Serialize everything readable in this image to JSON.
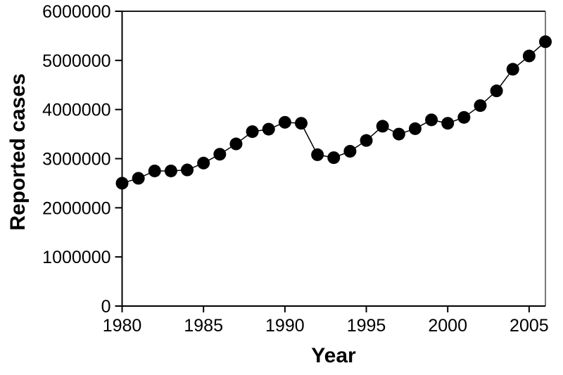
{
  "page": {
    "background": "#ffffff"
  },
  "chart_data": {
    "type": "line",
    "title": "",
    "xlabel": "Year",
    "ylabel": "Reported cases",
    "x": [
      1980,
      1981,
      1982,
      1983,
      1984,
      1985,
      1986,
      1987,
      1988,
      1989,
      1990,
      1991,
      1992,
      1993,
      1994,
      1995,
      1996,
      1997,
      1998,
      1999,
      2000,
      2001,
      2002,
      2003,
      2004,
      2005,
      2006
    ],
    "series": [
      {
        "name": "Reported cases",
        "values": [
          2500000,
          2600000,
          2750000,
          2750000,
          2770000,
          2910000,
          3090000,
          3300000,
          3550000,
          3600000,
          3740000,
          3720000,
          3080000,
          3020000,
          3150000,
          3370000,
          3660000,
          3500000,
          3610000,
          3790000,
          3720000,
          3840000,
          4080000,
          4380000,
          4820000,
          5090000,
          5380000
        ]
      }
    ],
    "xlim": [
      1980,
      2006
    ],
    "ylim": [
      0,
      6000000
    ],
    "x_ticks": [
      1980,
      1985,
      1990,
      1995,
      2000,
      2005
    ],
    "y_ticks": [
      0,
      1000000,
      2000000,
      3000000,
      4000000,
      5000000,
      6000000
    ],
    "legend": "none",
    "grid": false,
    "marker": "filled-circle",
    "colors": {
      "line": "#000000",
      "marker": "#000000",
      "axis": "#000000",
      "frame": "#4d4d4d",
      "tick_text": "#000000"
    }
  }
}
